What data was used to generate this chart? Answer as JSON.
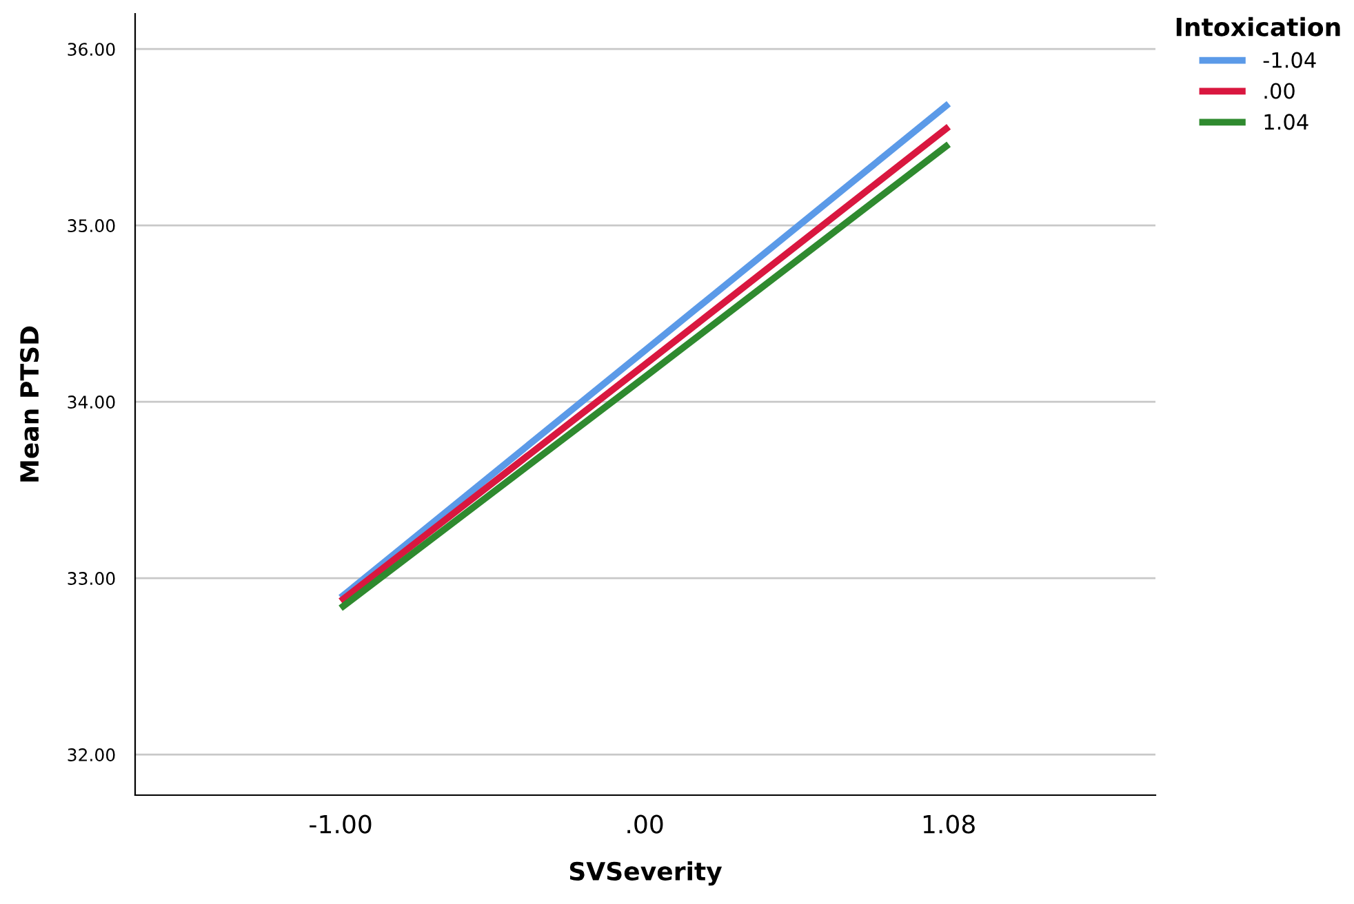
{
  "chart_data": {
    "type": "line",
    "xlabel": "SVSeverity",
    "ylabel": "Mean PTSD",
    "legend_title": "Intoxication",
    "legend": "top right",
    "categories": [
      "-1.00",
      ".00",
      "1.08"
    ],
    "series": [
      {
        "name": "-1.04",
        "color": "#5b9ae8",
        "values": [
          32.89,
          34.29,
          35.69
        ]
      },
      {
        "name": ".00",
        "color": "#d9173f",
        "values": [
          32.87,
          34.21,
          35.56
        ]
      },
      {
        "name": "1.04",
        "color": "#2f8a2f",
        "values": [
          32.83,
          34.14,
          35.46
        ]
      }
    ],
    "ylim": [
      31.77,
      36.2
    ],
    "yticks": [
      {
        "value": 32,
        "label": "32.00"
      },
      {
        "value": 33,
        "label": "33.00"
      },
      {
        "value": 34,
        "label": "34.00"
      },
      {
        "value": 35,
        "label": "35.00"
      },
      {
        "value": 36,
        "label": "36.00"
      }
    ],
    "grid": "y",
    "marker": "none",
    "line_style": "solid"
  }
}
